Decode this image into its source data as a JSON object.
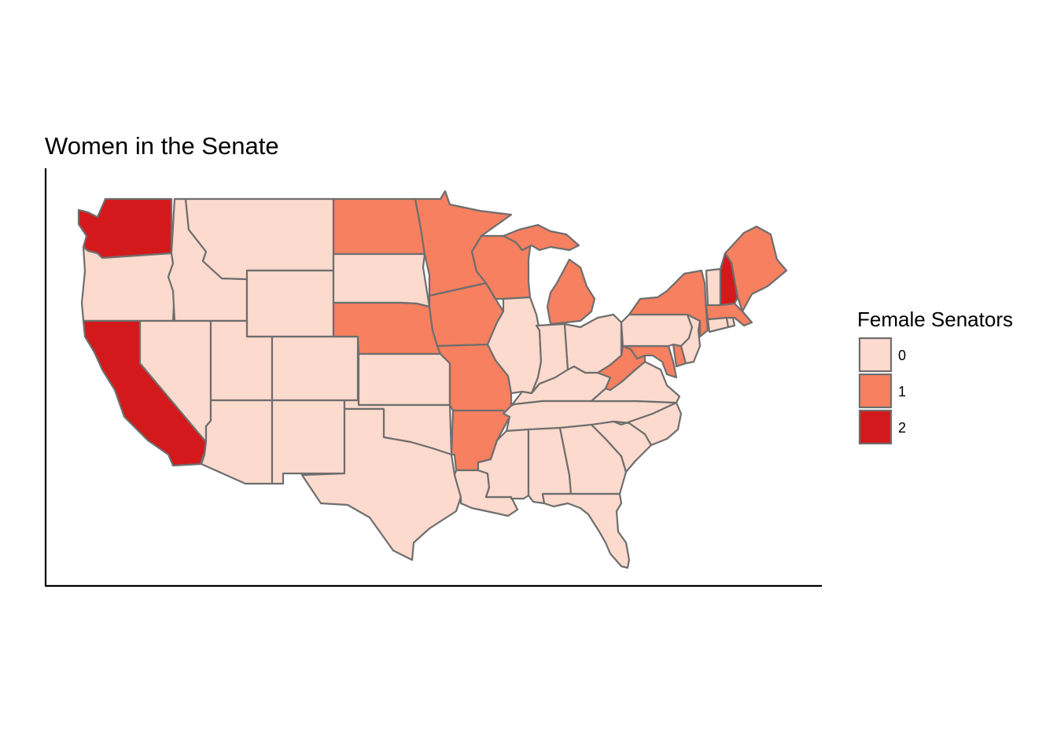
{
  "title": "Women in the Senate",
  "legend": {
    "title": "Female Senators",
    "items": [
      {
        "label": "0",
        "value": 0,
        "color": "#fcdacd"
      },
      {
        "label": "1",
        "value": 1,
        "color": "#f6805f"
      },
      {
        "label": "2",
        "value": 2,
        "color": "#d3191c"
      }
    ]
  },
  "colors": {
    "border": "#6e6e6e",
    "axis": "#000000",
    "background": "#ffffff"
  },
  "states": [
    {
      "name": "Washington",
      "senators": 2
    },
    {
      "name": "Oregon",
      "senators": 0
    },
    {
      "name": "California",
      "senators": 2
    },
    {
      "name": "Idaho",
      "senators": 0
    },
    {
      "name": "Nevada",
      "senators": 0
    },
    {
      "name": "Montana",
      "senators": 0
    },
    {
      "name": "Wyoming",
      "senators": 0
    },
    {
      "name": "Utah",
      "senators": 0
    },
    {
      "name": "Arizona",
      "senators": 0
    },
    {
      "name": "Colorado",
      "senators": 0
    },
    {
      "name": "New Mexico",
      "senators": 0
    },
    {
      "name": "North Dakota",
      "senators": 1
    },
    {
      "name": "South Dakota",
      "senators": 0
    },
    {
      "name": "Nebraska",
      "senators": 1
    },
    {
      "name": "Kansas",
      "senators": 0
    },
    {
      "name": "Oklahoma",
      "senators": 0
    },
    {
      "name": "Texas",
      "senators": 0
    },
    {
      "name": "Minnesota",
      "senators": 1
    },
    {
      "name": "Iowa",
      "senators": 1
    },
    {
      "name": "Missouri",
      "senators": 1
    },
    {
      "name": "Arkansas",
      "senators": 1
    },
    {
      "name": "Louisiana",
      "senators": 0
    },
    {
      "name": "Wisconsin",
      "senators": 1
    },
    {
      "name": "Illinois",
      "senators": 0
    },
    {
      "name": "Michigan",
      "senators": 1
    },
    {
      "name": "Indiana",
      "senators": 0
    },
    {
      "name": "Ohio",
      "senators": 0
    },
    {
      "name": "Kentucky",
      "senators": 0
    },
    {
      "name": "Tennessee",
      "senators": 0
    },
    {
      "name": "Mississippi",
      "senators": 0
    },
    {
      "name": "Alabama",
      "senators": 0
    },
    {
      "name": "Georgia",
      "senators": 0
    },
    {
      "name": "Florida",
      "senators": 0
    },
    {
      "name": "South Carolina",
      "senators": 0
    },
    {
      "name": "North Carolina",
      "senators": 0
    },
    {
      "name": "Virginia",
      "senators": 0
    },
    {
      "name": "West Virginia",
      "senators": 1
    },
    {
      "name": "Maryland",
      "senators": 1
    },
    {
      "name": "Delaware",
      "senators": 1
    },
    {
      "name": "Pennsylvania",
      "senators": 0
    },
    {
      "name": "New Jersey",
      "senators": 0
    },
    {
      "name": "New York",
      "senators": 1
    },
    {
      "name": "Connecticut",
      "senators": 0
    },
    {
      "name": "Rhode Island",
      "senators": 0
    },
    {
      "name": "Massachusetts",
      "senators": 1
    },
    {
      "name": "Vermont",
      "senators": 0
    },
    {
      "name": "New Hampshire",
      "senators": 2
    },
    {
      "name": "Maine",
      "senators": 1
    }
  ]
}
